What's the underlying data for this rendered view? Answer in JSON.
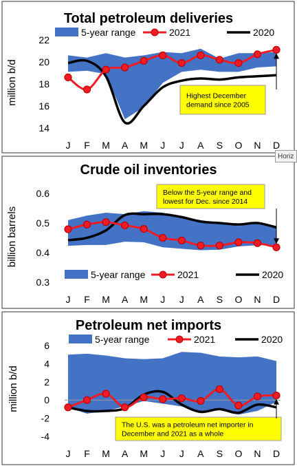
{
  "chart_data": [
    {
      "type": "line",
      "title": "Total petroleum deliveries",
      "ylabel": "million b/d",
      "ylim": [
        14,
        22
      ],
      "yticks": [
        14,
        16,
        18,
        20,
        22
      ],
      "categories": [
        "J",
        "F",
        "M",
        "A",
        "M",
        "J",
        "J",
        "A",
        "S",
        "O",
        "N",
        "D"
      ],
      "legend": {
        "range_label": "5-year range",
        "s2021_label": "2021",
        "s2020_label": "2020"
      },
      "range_low": [
        19.1,
        19.2,
        18.9,
        14.8,
        15.9,
        18.1,
        19.1,
        19.3,
        19.1,
        19.1,
        19.5,
        19.6
      ],
      "range_high": [
        20.6,
        20.4,
        20.8,
        20.4,
        20.6,
        20.9,
        20.8,
        21.2,
        20.3,
        20.8,
        20.8,
        20.9
      ],
      "series": [
        {
          "name": "2021",
          "values": [
            18.6,
            17.5,
            19.3,
            19.5,
            20.1,
            20.6,
            19.9,
            20.6,
            20.2,
            19.9,
            20.7,
            21.1
          ]
        },
        {
          "name": "2020",
          "values": [
            19.9,
            20.1,
            18.7,
            14.5,
            16.0,
            17.7,
            18.3,
            18.5,
            18.4,
            18.6,
            18.7,
            18.8
          ]
        }
      ],
      "annotation": "Highest December demand since 2005"
    },
    {
      "type": "line",
      "title": "Crude oil inventories",
      "ylabel": "billion barrels",
      "ylim": [
        0.3,
        0.6
      ],
      "yticks": [
        0.3,
        0.4,
        0.5,
        0.6
      ],
      "tick_labels": [
        "0.3",
        "0.4",
        "0.5",
        "0.6"
      ],
      "categories": [
        "J",
        "F",
        "M",
        "A",
        "M",
        "J",
        "J",
        "A",
        "S",
        "O",
        "N",
        "D"
      ],
      "legend": {
        "range_label": "5-year range",
        "s2021_label": "2021",
        "s2020_label": "2020"
      },
      "range_low": [
        0.423,
        0.426,
        0.426,
        0.437,
        0.435,
        0.418,
        0.413,
        0.408,
        0.41,
        0.421,
        0.425,
        0.425
      ],
      "range_high": [
        0.51,
        0.525,
        0.535,
        0.53,
        0.54,
        0.535,
        0.52,
        0.51,
        0.5,
        0.49,
        0.5,
        0.49
      ],
      "series": [
        {
          "name": "2021",
          "values": [
            0.479,
            0.495,
            0.503,
            0.492,
            0.48,
            0.45,
            0.441,
            0.424,
            0.424,
            0.435,
            0.432,
            0.418
          ]
        },
        {
          "name": "2020",
          "values": [
            0.442,
            0.45,
            0.475,
            0.527,
            0.53,
            0.53,
            0.52,
            0.505,
            0.5,
            0.495,
            0.5,
            0.485
          ]
        }
      ],
      "annotation": "Below the 5-year range and lowest for Dec. since 2014"
    },
    {
      "type": "line",
      "title": "Petroleum net imports",
      "ylabel": "million b/d",
      "ylim": [
        -4,
        6
      ],
      "yticks": [
        -4,
        -2,
        0,
        2,
        4,
        6
      ],
      "categories": [
        "J",
        "F",
        "M",
        "A",
        "M",
        "J",
        "J",
        "A",
        "S",
        "O",
        "N",
        "D"
      ],
      "legend": {
        "range_label": "5-year range",
        "s2021_label": "2021",
        "s2020_label": "2020"
      },
      "range_low": [
        -0.8,
        -1.5,
        -1.2,
        -0.7,
        -0.1,
        -0.4,
        -0.7,
        -1.4,
        -1.1,
        -1.6,
        -1.2,
        -0.2
      ],
      "range_high": [
        5.0,
        5.1,
        4.9,
        4.6,
        4.5,
        4.6,
        5.3,
        5.2,
        4.8,
        4.7,
        4.8,
        4.3
      ],
      "series": [
        {
          "name": "2021",
          "values": [
            -0.8,
            0.0,
            0.7,
            -0.8,
            0.3,
            0.1,
            0.2,
            -0.1,
            1.2,
            -0.6,
            0.4,
            0.5
          ]
        },
        {
          "name": "2020",
          "values": [
            -0.8,
            -1.2,
            -1.2,
            -0.9,
            0.6,
            0.9,
            -0.5,
            -1.3,
            -1.0,
            -1.4,
            -0.5,
            -0.8
          ]
        }
      ],
      "annotation": "The U.S. was a petroleum net importer in December and 2021 as a whole"
    }
  ],
  "overlay": {
    "tooltip_text": "Horiz"
  }
}
